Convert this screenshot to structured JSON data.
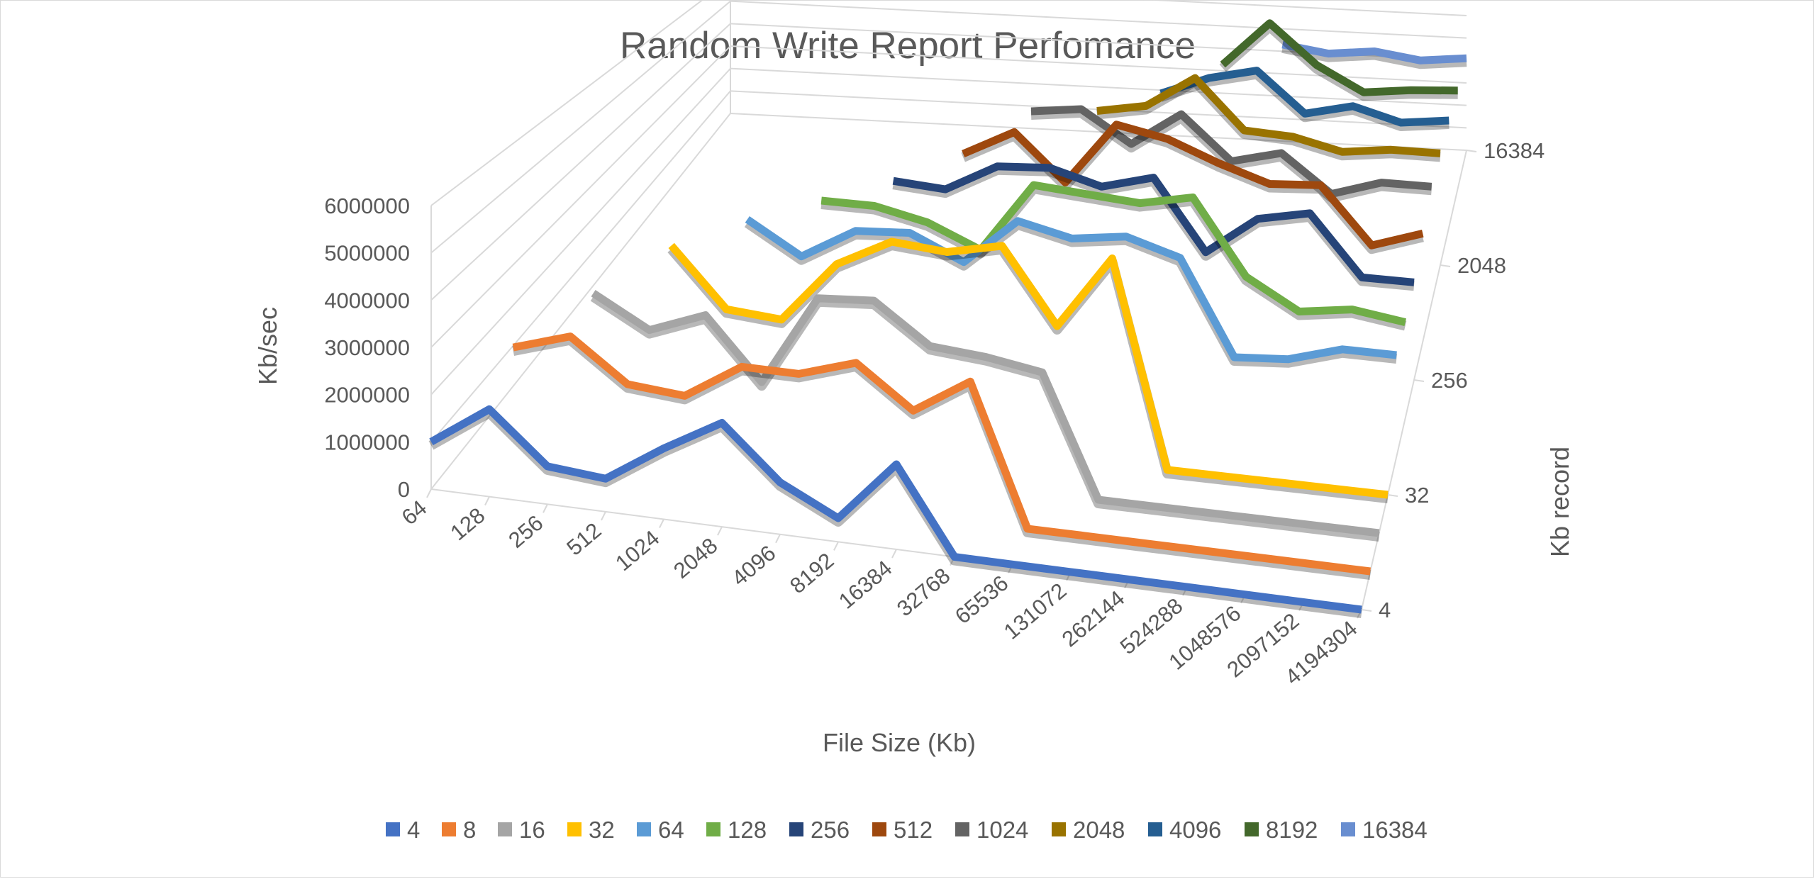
{
  "chart_data": {
    "type": "line",
    "title": "Random Write Report Perfomance",
    "xlabel": "File Size (Kb)",
    "ylabel": "Kb/sec",
    "zlabel": "Kb record",
    "view": "3d-line",
    "grid": true,
    "legend": "bottom",
    "ylim": [
      0,
      6000000
    ],
    "y_ticks": [
      "0",
      "1000000",
      "2000000",
      "3000000",
      "4000000",
      "5000000",
      "6000000"
    ],
    "z_ticks": [
      "4",
      "32",
      "256",
      "2048",
      "16384"
    ],
    "categories": [
      "64",
      "128",
      "256",
      "512",
      "1024",
      "2048",
      "4096",
      "8192",
      "16384",
      "32768",
      "65536",
      "131072",
      "262144",
      "524288",
      "1048576",
      "2097152",
      "4194304"
    ],
    "series": [
      {
        "name": "4",
        "color": "#4472C4",
        "values": [
          1000000,
          1850000,
          800000,
          700000,
          1500000,
          2200000,
          1100000,
          500000,
          1800000,
          0,
          0,
          0,
          0,
          0,
          0,
          0,
          0
        ]
      },
      {
        "name": "8",
        "color": "#ED7D31",
        "values": [
          null,
          2600000,
          3000000,
          2100000,
          2000000,
          2800000,
          2800000,
          3200000,
          2300000,
          3100000,
          0,
          0,
          0,
          0,
          0,
          0,
          0
        ]
      },
      {
        "name": "16",
        "color": "#A5A5A5",
        "values": [
          null,
          null,
          3400000,
          2700000,
          3200000,
          1800000,
          3900000,
          4000000,
          3100000,
          3000000,
          2800000,
          0,
          0,
          0,
          0,
          0,
          0
        ]
      },
      {
        "name": "32",
        "color": "#FFC000",
        "values": [
          null,
          null,
          null,
          4100000,
          2700000,
          2600000,
          4100000,
          4800000,
          4700000,
          5000000,
          3200000,
          5000000,
          0,
          0,
          0,
          0,
          0
        ]
      },
      {
        "name": "64",
        "color": "#5B9BD5",
        "values": [
          null,
          null,
          null,
          null,
          4300000,
          3500000,
          4300000,
          4400000,
          3800000,
          5000000,
          4700000,
          4900000,
          4500000,
          2100000,
          2200000,
          2600000,
          2600000
        ]
      },
      {
        "name": "128",
        "color": "#70AD47",
        "values": [
          null,
          null,
          null,
          null,
          null,
          4300000,
          4300000,
          4000000,
          3400000,
          5300000,
          5200000,
          5100000,
          5400000,
          3400000,
          2600000,
          2800000,
          2600000
        ]
      },
      {
        "name": "256",
        "color": "#264478",
        "values": [
          null,
          null,
          null,
          null,
          null,
          null,
          4300000,
          4200000,
          5000000,
          5100000,
          4700000,
          5100000,
          3100000,
          4200000,
          4500000,
          2800000,
          2800000
        ]
      },
      {
        "name": "512",
        "color": "#9E480E",
        "values": [
          null,
          null,
          null,
          null,
          null,
          null,
          null,
          4500000,
          5300000,
          3900000,
          5800000,
          5500000,
          4900000,
          4400000,
          4500000,
          2800000,
          3300000
        ]
      },
      {
        "name": "1024",
        "color": "#636363",
        "values": [
          null,
          null,
          null,
          null,
          null,
          null,
          null,
          null,
          5200000,
          5400000,
          4400000,
          5500000,
          4100000,
          4500000,
          3300000,
          3800000,
          3800000
        ]
      },
      {
        "name": "2048",
        "color": "#997300",
        "values": [
          null,
          null,
          null,
          null,
          null,
          null,
          null,
          null,
          null,
          4500000,
          4800000,
          5900000,
          4200000,
          4100000,
          3700000,
          3900000,
          3900000
        ]
      },
      {
        "name": "4096",
        "color": "#255E91",
        "values": [
          null,
          null,
          null,
          null,
          null,
          null,
          null,
          null,
          null,
          null,
          4300000,
          5000000,
          5400000,
          3900000,
          4300000,
          3800000,
          4000000
        ]
      },
      {
        "name": "8192",
        "color": "#43682B",
        "values": [
          null,
          null,
          null,
          null,
          null,
          null,
          null,
          null,
          null,
          null,
          null,
          4500000,
          6300000,
          4700000,
          3700000,
          3900000,
          4000000
        ]
      },
      {
        "name": "16384",
        "color": "#698ED0",
        "values": [
          null,
          null,
          null,
          null,
          null,
          null,
          null,
          null,
          null,
          null,
          null,
          null,
          4300000,
          4000000,
          4200000,
          3900000,
          4100000
        ]
      }
    ]
  }
}
